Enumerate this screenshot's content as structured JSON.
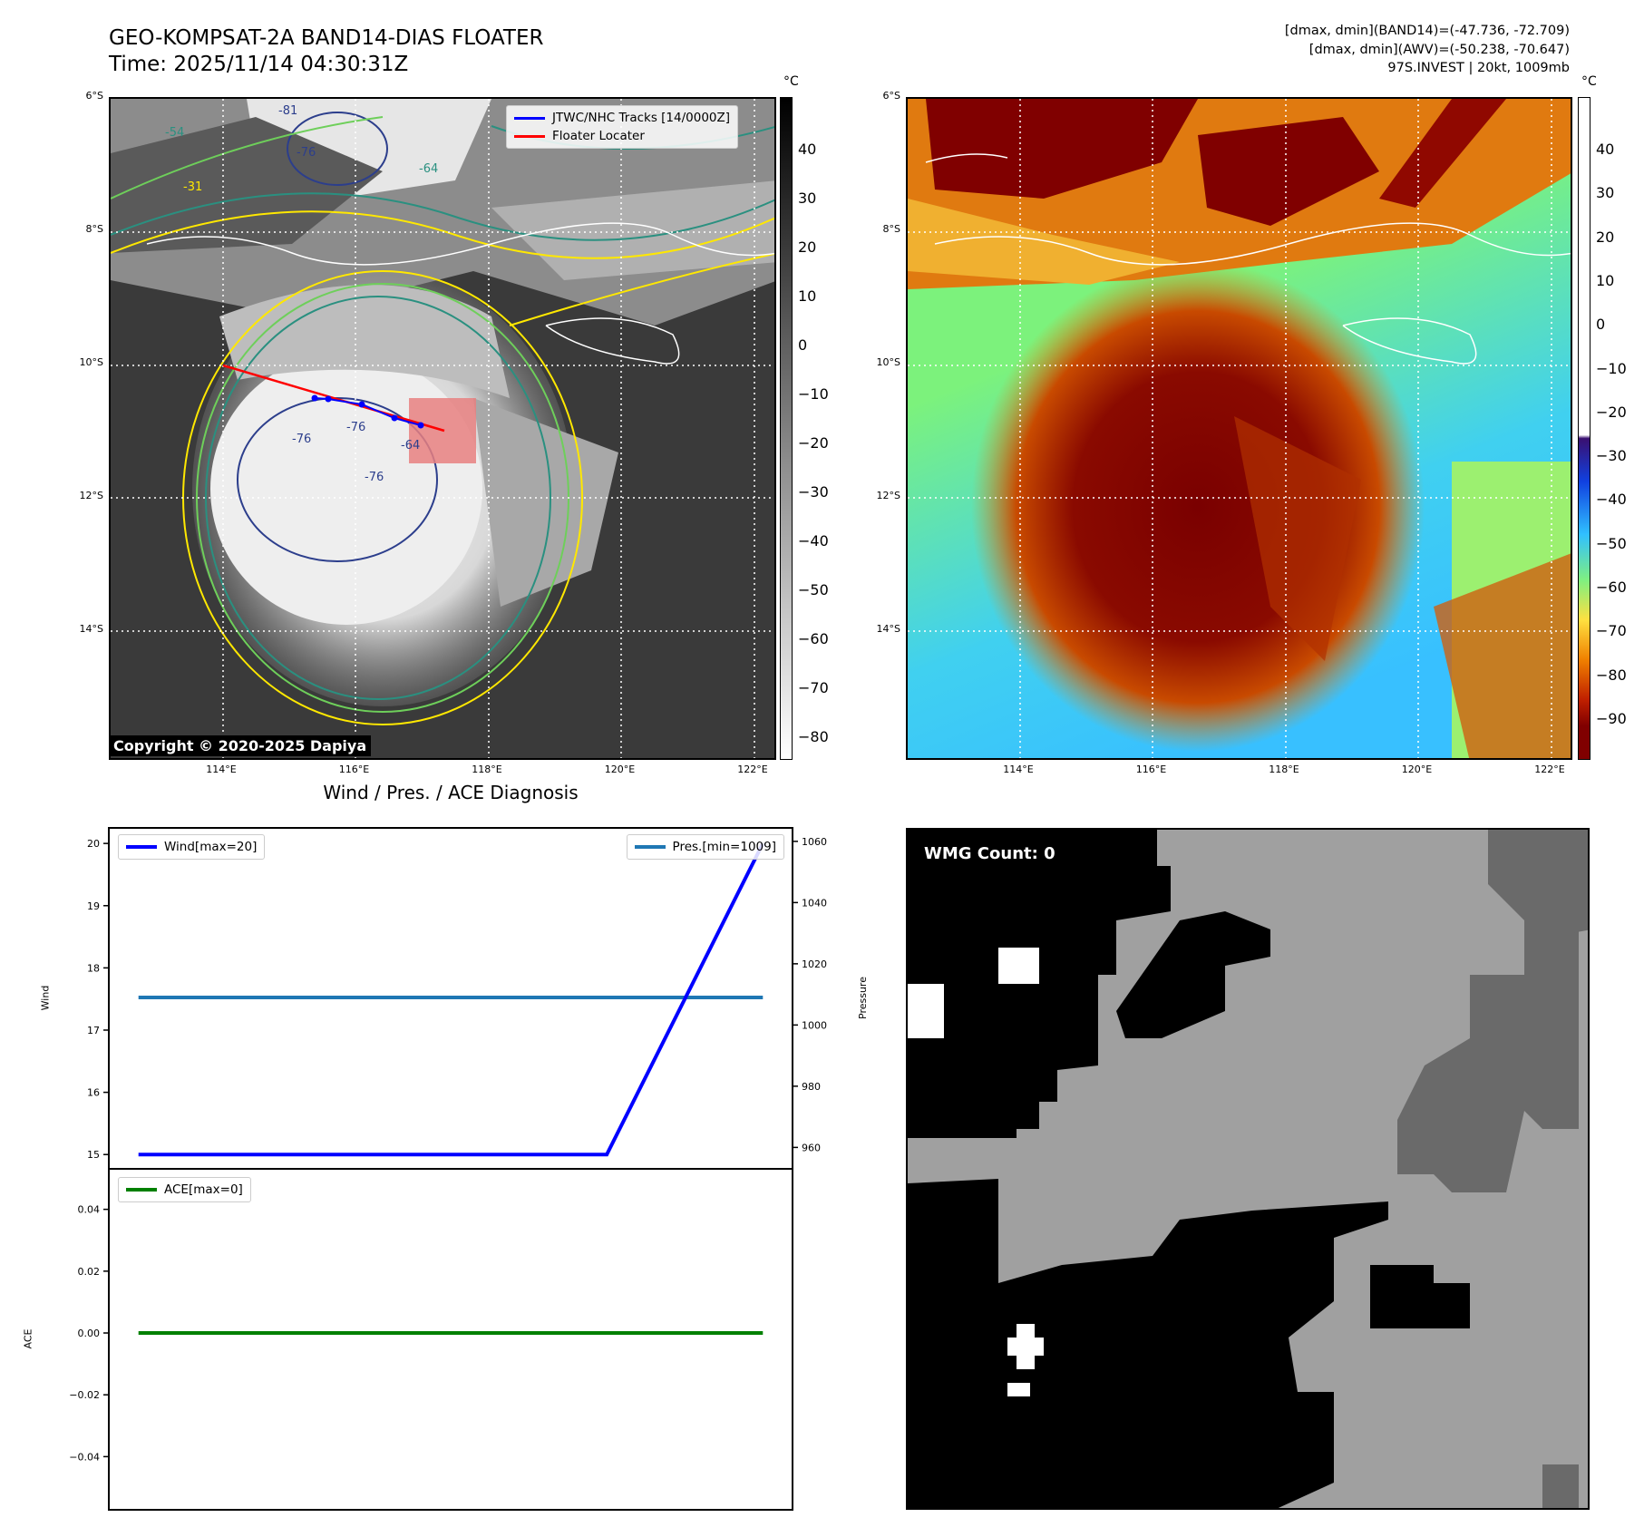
{
  "header": {
    "title_line1": "GEO-KOMPSAT-2A BAND14-DIAS FLOATER",
    "title_line2": "Time: 2025/11/14 04:30:31Z",
    "info_line1": "[dmax, dmin](BAND14)=(-47.736, -72.709)",
    "info_line2": "[dmax, dmin](AWV)=(-50.238, -70.647)",
    "info_line3": "97S.INVEST | 20kt, 1009mb"
  },
  "maps": {
    "lat_labels": [
      "6°S",
      "8°S",
      "10°S",
      "12°S",
      "14°S"
    ],
    "lon_labels": [
      "114°E",
      "116°E",
      "118°E",
      "120°E",
      "122°E"
    ],
    "unit": "°C",
    "left_colorbar_ticks": [
      "40",
      "30",
      "20",
      "10",
      "0",
      "−10",
      "−20",
      "−30",
      "−40",
      "−50",
      "−60",
      "−70",
      "−80"
    ],
    "right_colorbar_ticks": [
      "40",
      "30",
      "20",
      "10",
      "0",
      "−10",
      "−20",
      "−30",
      "−40",
      "−50",
      "−60",
      "−70",
      "−80",
      "−90"
    ],
    "legend_tracks": "JTWC/NHC Tracks [14/0000Z]",
    "legend_floater": "Floater Locater",
    "copyright": "Copyright © 2020-2025 Dapiya",
    "contour_labels": [
      "-81",
      "-76",
      "-76",
      "-76",
      "-64",
      "-76",
      "-54",
      "-64",
      "-31"
    ],
    "colors": {
      "track": "#0000ff",
      "floater": "#ff0000",
      "floater_box": "#e88080"
    }
  },
  "wmg": {
    "label": "WMG Count: 0"
  },
  "chart_data": {
    "type": "line",
    "title": "Wind / Pres. / ACE Diagnosis",
    "x": [
      0,
      1,
      2,
      3,
      4
    ],
    "series": [
      {
        "name": "Wind[max=20]",
        "axis": "Wind",
        "values": [
          15,
          15,
          15,
          15,
          20
        ],
        "color": "#0000ff"
      },
      {
        "name": "Pres.[min=1009]",
        "axis": "Pressure",
        "values": [
          1009,
          1009,
          1009,
          1009,
          1009
        ],
        "color": "#1f77b4"
      },
      {
        "name": "ACE[max=0]",
        "axis": "ACE",
        "values": [
          0,
          0,
          0,
          0,
          0
        ],
        "color": "#008000"
      }
    ],
    "wind_axis": {
      "label": "Wind",
      "ylim": [
        14.77,
        20.25
      ],
      "ticks": [
        15,
        16,
        17,
        18,
        19,
        20
      ]
    },
    "pressure_axis": {
      "label": "Pressure",
      "ylim": [
        953,
        1064.4
      ],
      "ticks": [
        960,
        980,
        1000,
        1020,
        1040,
        1060
      ]
    },
    "ace_axis": {
      "label": "ACE",
      "ylim": [
        -0.0572,
        0.0531
      ],
      "ticks": [
        "0.04",
        "0.02",
        "0.00",
        "−0.02",
        "−0.04"
      ],
      "tick_values": [
        0.04,
        0.02,
        0,
        -0.02,
        -0.04
      ]
    },
    "xlim": [
      -0.19,
      4.19
    ],
    "legend_placement": {
      "wind": "upper-left",
      "pressure": "upper-right",
      "ace": "upper-left"
    }
  }
}
